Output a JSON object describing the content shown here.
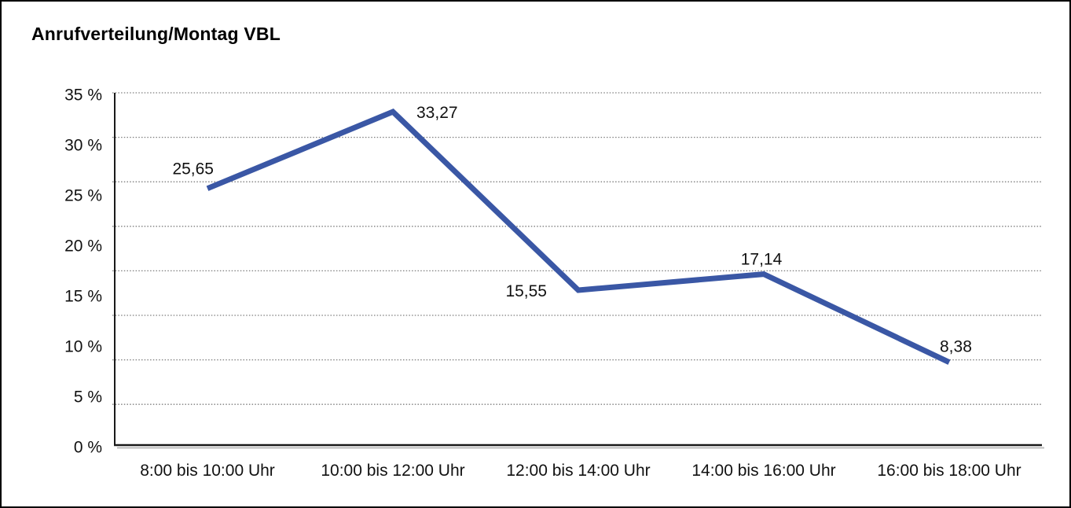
{
  "chart_data": {
    "type": "line",
    "title": "Anrufverteilung/Montag VBL",
    "categories": [
      "8:00 bis 10:00 Uhr",
      "10:00 bis 12:00 Uhr",
      "12:00 bis 14:00 Uhr",
      "14:00 bis 16:00 Uhr",
      "16:00 bis 18:00 Uhr"
    ],
    "values": [
      25.65,
      33.27,
      15.55,
      17.14,
      8.38
    ],
    "point_labels": [
      "25,65",
      "33,27",
      "15,55",
      "17,14",
      "8,38"
    ],
    "xlabel": "",
    "ylabel": "",
    "y_axis": {
      "min": 0,
      "max": 35,
      "step": 5,
      "tick_labels": [
        "0 %",
        "5 %",
        "10 %",
        "15 %",
        "20 %",
        "25 %",
        "30 %",
        "35 %"
      ]
    },
    "ylim": [
      0,
      35
    ],
    "grid": "horizontal-dotted",
    "legend": "none",
    "line_color": "#3A57A5",
    "axis_color": "#1a1a1a",
    "grid_color": "#7d7d7d",
    "text_color": "#111111",
    "background_color": "#ffffff"
  }
}
